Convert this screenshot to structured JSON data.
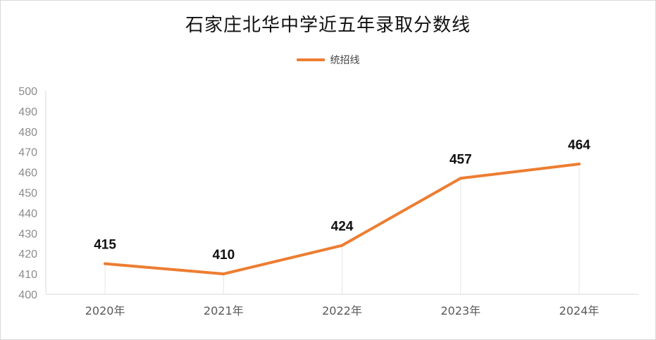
{
  "chart_data": {
    "type": "line",
    "title": "石家庄北华中学近五年录取分数线",
    "categories": [
      "2020年",
      "2021年",
      "2022年",
      "2023年",
      "2024年"
    ],
    "series": [
      {
        "name": "统招线",
        "values": [
          415,
          410,
          424,
          457,
          464
        ],
        "color": "#ed7d31"
      }
    ],
    "ylim": [
      400,
      500
    ],
    "yticks": [
      400,
      410,
      420,
      430,
      440,
      450,
      460,
      470,
      480,
      490,
      500
    ],
    "legend_position": "top-center",
    "data_labels": true,
    "grid": false
  }
}
